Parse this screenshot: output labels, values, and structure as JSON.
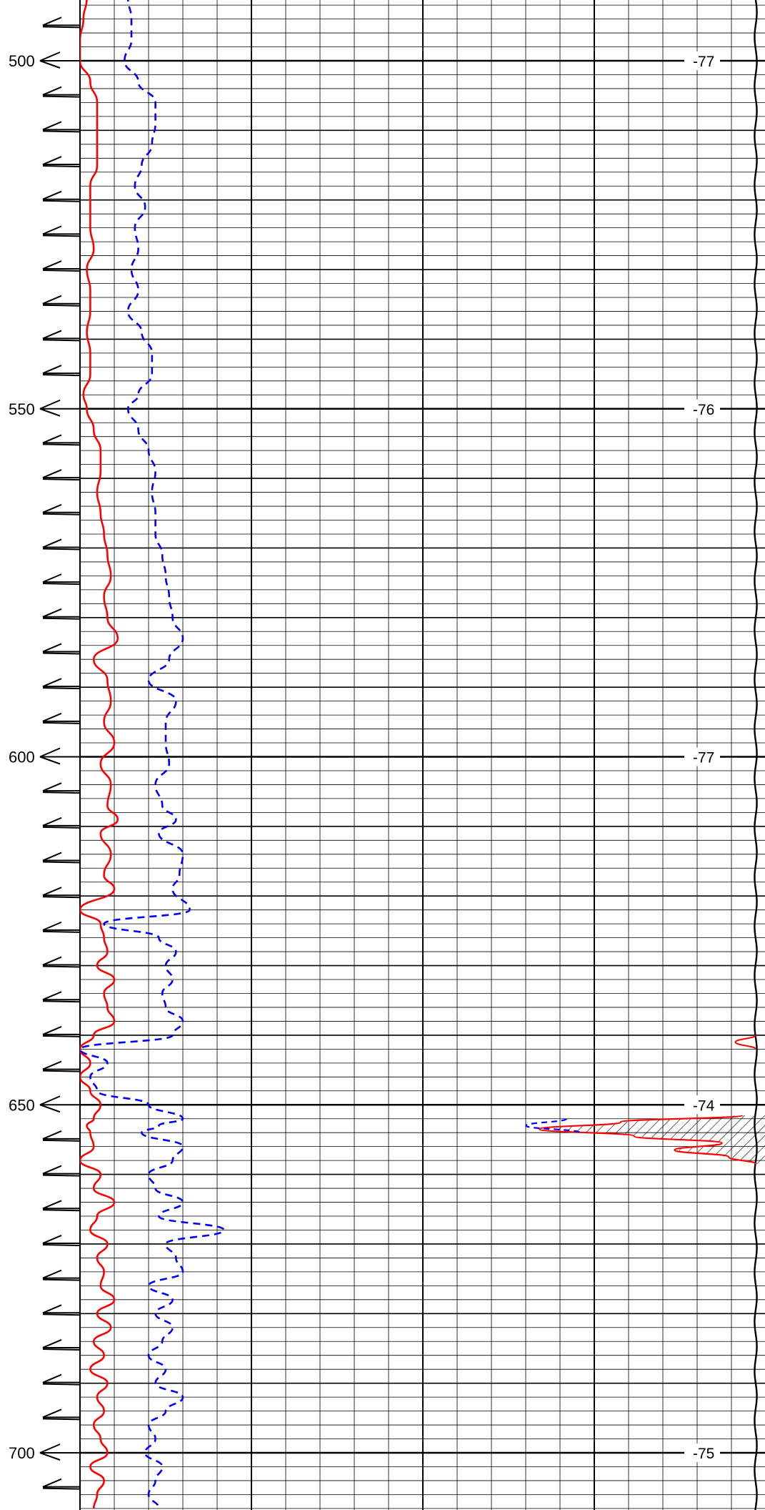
{
  "chart_data": {
    "type": "line",
    "title": "",
    "xlabel": "",
    "ylabel": "",
    "depth_range": [
      477,
      719
    ],
    "depth_tick_labels": [
      "500",
      "550",
      "600",
      "650",
      "700"
    ],
    "depth_label_values": [
      500,
      550,
      600,
      650,
      700
    ],
    "right_track_labels": [
      {
        "depth": 500,
        "text": "-77"
      },
      {
        "depth": 550,
        "text": "-76"
      },
      {
        "depth": 600,
        "text": "-77"
      },
      {
        "depth": 650,
        "text": "-74"
      },
      {
        "depth": 700,
        "text": "-75"
      }
    ],
    "grid": true,
    "legend": "none",
    "scale": {
      "x_min": 0,
      "x_max": 1
    },
    "colors": {
      "red_curve": "#ff0000",
      "blue_curve": "#0000ff",
      "grid_major": "#000000",
      "grid_minor": "#000000",
      "shading": "#000000"
    },
    "series": [
      {
        "style": "solid-red",
        "depth": [
          477,
          479,
          482,
          485,
          488,
          491,
          494,
          497,
          500,
          503,
          506,
          509,
          512,
          515,
          518,
          521,
          524,
          527,
          530,
          533,
          536,
          539,
          542,
          545,
          548,
          550,
          553,
          556,
          559,
          562,
          565,
          568,
          571,
          574,
          577,
          580,
          583,
          586,
          589,
          592,
          595,
          598,
          601,
          604,
          607,
          609,
          611,
          614,
          617,
          619,
          622,
          624,
          626,
          628,
          630,
          632,
          634,
          636,
          638,
          640,
          642,
          644,
          646,
          648,
          650,
          652,
          653,
          654,
          656,
          658,
          660,
          662,
          664,
          666,
          668,
          670,
          672,
          674,
          676,
          678,
          680,
          682,
          684,
          686,
          688,
          690,
          692,
          694,
          696,
          698,
          700,
          702,
          704,
          706,
          708
        ],
        "values": [
          0.02,
          0.03,
          0.02,
          0.02,
          0.03,
          0.02,
          0.01,
          0.0,
          0.0,
          0.03,
          0.05,
          0.05,
          0.05,
          0.05,
          0.03,
          0.03,
          0.03,
          0.04,
          0.02,
          0.03,
          0.03,
          0.02,
          0.03,
          0.03,
          0.01,
          0.02,
          0.04,
          0.06,
          0.06,
          0.05,
          0.06,
          0.07,
          0.08,
          0.09,
          0.07,
          0.08,
          0.11,
          0.04,
          0.08,
          0.09,
          0.07,
          0.1,
          0.06,
          0.09,
          0.08,
          0.11,
          0.06,
          0.09,
          0.07,
          0.1,
          0.0,
          0.06,
          0.07,
          0.08,
          0.05,
          0.1,
          0.07,
          0.08,
          0.1,
          0.04,
          0.0,
          0.03,
          0.0,
          0.03,
          0.06,
          0.04,
          0.02,
          0.03,
          0.04,
          0.0,
          0.06,
          0.04,
          0.1,
          0.05,
          0.03,
          0.08,
          0.05,
          0.07,
          0.06,
          0.1,
          0.05,
          0.09,
          0.04,
          0.07,
          0.03,
          0.08,
          0.05,
          0.07,
          0.04,
          0.06,
          0.08,
          0.03,
          0.07,
          0.05,
          0.04
        ]
      },
      {
        "style": "dashed-blue",
        "depth": [
          477,
          479,
          482,
          485,
          488,
          491,
          494,
          497,
          500,
          503,
          506,
          509,
          512,
          515,
          518,
          521,
          524,
          527,
          530,
          533,
          536,
          539,
          542,
          545,
          548,
          550,
          553,
          556,
          559,
          562,
          565,
          568,
          571,
          574,
          577,
          580,
          583,
          586,
          589,
          592,
          595,
          598,
          601,
          604,
          607,
          609,
          611,
          614,
          617,
          619,
          622,
          624,
          626,
          628,
          630,
          632,
          634,
          636,
          638,
          640,
          642,
          644,
          646,
          648,
          650,
          652,
          653,
          654,
          656,
          658,
          660,
          662,
          664,
          666,
          668,
          670,
          672,
          674,
          676,
          678,
          680,
          682,
          684,
          686,
          688,
          690,
          692,
          694,
          696,
          698,
          700,
          702,
          704,
          706,
          708
        ],
        "values": [
          0.14,
          0.16,
          0.15,
          0.16,
          0.15,
          0.14,
          0.15,
          0.15,
          0.13,
          0.17,
          0.22,
          0.22,
          0.21,
          0.18,
          0.16,
          0.19,
          0.16,
          0.17,
          0.15,
          0.17,
          0.14,
          0.18,
          0.21,
          0.21,
          0.17,
          0.14,
          0.17,
          0.2,
          0.22,
          0.21,
          0.22,
          0.22,
          0.24,
          0.25,
          0.26,
          0.27,
          0.3,
          0.26,
          0.2,
          0.28,
          0.25,
          0.25,
          0.26,
          0.22,
          0.24,
          0.28,
          0.23,
          0.3,
          0.29,
          0.27,
          0.32,
          0.07,
          0.23,
          0.28,
          0.25,
          0.27,
          0.24,
          0.25,
          0.3,
          0.27,
          0.0,
          0.08,
          0.03,
          0.05,
          0.2,
          0.3,
          0.23,
          0.18,
          0.3,
          0.27,
          0.2,
          0.22,
          0.3,
          0.23,
          0.42,
          0.25,
          0.28,
          0.3,
          0.2,
          0.27,
          0.22,
          0.27,
          0.24,
          0.2,
          0.25,
          0.22,
          0.3,
          0.25,
          0.2,
          0.22,
          0.19,
          0.24,
          0.22,
          0.2,
          0.23
        ]
      }
    ],
    "right_curve": {
      "style": "red-shaded-spike",
      "depth": [
        651.5,
        652.5,
        653.5,
        654.5,
        655.5,
        656.5,
        657.5,
        658.5
      ],
      "values": [
        0.98,
        0.8,
        0.68,
        0.82,
        0.95,
        0.88,
        0.96,
        1.0
      ]
    },
    "right_dashed_spike": {
      "depth": [
        652.0,
        653.0,
        654.0
      ],
      "values": [
        0.72,
        0.66,
        0.74
      ]
    },
    "right_red_notch": {
      "depth": [
        640.0,
        641.0,
        642.0
      ],
      "values": [
        1.0,
        0.97,
        1.0
      ]
    }
  }
}
